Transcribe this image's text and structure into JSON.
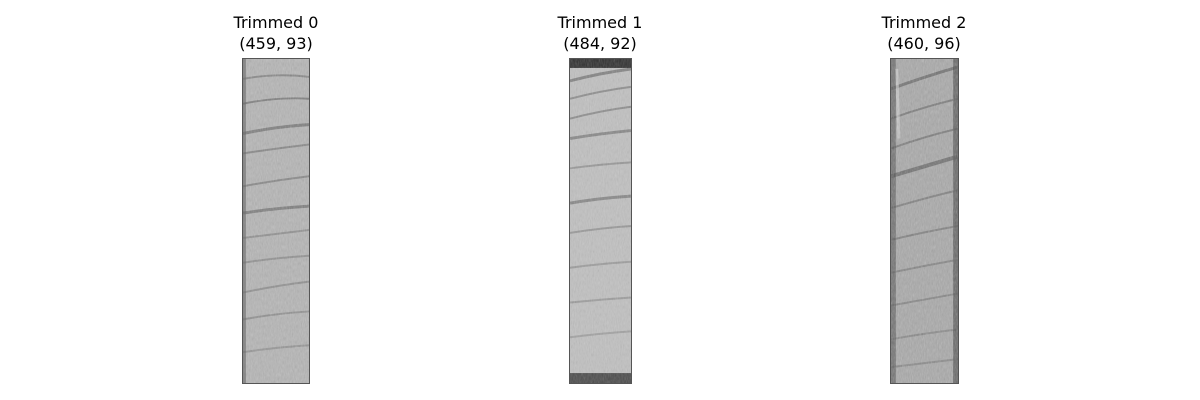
{
  "panels": [
    {
      "title": "Trimmed 0",
      "shape": "(459, 93)"
    },
    {
      "title": "Trimmed 1",
      "shape": "(484, 92)"
    },
    {
      "title": "Trimmed 2",
      "shape": "(460, 96)"
    }
  ],
  "colors": {
    "background": "#ffffff",
    "text": "#000000",
    "strip_base": "#b5b5b5",
    "band_dark": "#5a5a5a",
    "band_light": "#d6d6d6"
  }
}
